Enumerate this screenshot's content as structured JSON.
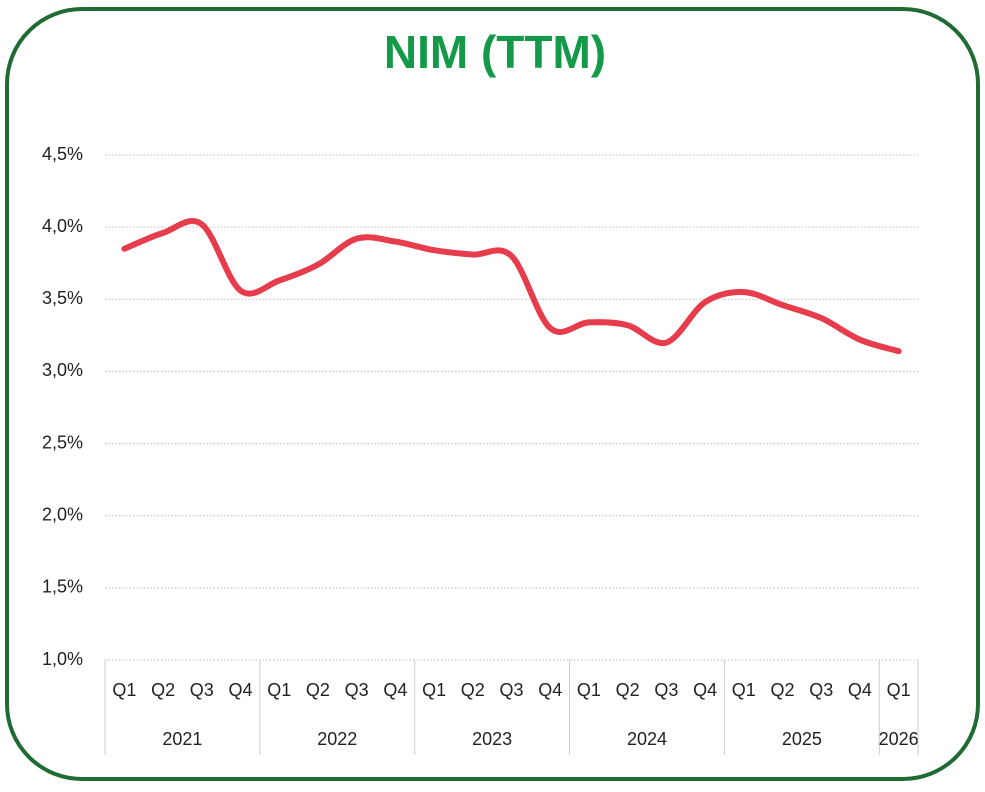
{
  "chart_data": {
    "type": "line",
    "title": "NIM (TTM)",
    "categories": [
      "Q1",
      "Q2",
      "Q3",
      "Q4",
      "Q1",
      "Q2",
      "Q3",
      "Q4",
      "Q1",
      "Q2",
      "Q3",
      "Q4",
      "Q1",
      "Q2",
      "Q3",
      "Q4",
      "Q1",
      "Q2",
      "Q3",
      "Q4",
      "Q1"
    ],
    "years": [
      "2021",
      "2022",
      "2023",
      "2024",
      "2025",
      "2026"
    ],
    "series": [
      {
        "color": "#e63c4b",
        "values": [
          3.85,
          3.96,
          4.02,
          3.56,
          3.63,
          3.74,
          3.92,
          3.9,
          3.84,
          3.81,
          3.8,
          3.3,
          3.34,
          3.32,
          3.2,
          3.48,
          3.55,
          3.46,
          3.37,
          3.22,
          3.14
        ]
      }
    ],
    "ylim": [
      1.0,
      4.5
    ],
    "yticks": [
      {
        "value": 1.0,
        "label": "1,0%"
      },
      {
        "value": 1.5,
        "label": "1,5%"
      },
      {
        "value": 2.0,
        "label": "2,0%"
      },
      {
        "value": 2.5,
        "label": "2,5%"
      },
      {
        "value": 3.0,
        "label": "3,0%"
      },
      {
        "value": 3.5,
        "label": "3,5%"
      },
      {
        "value": 4.0,
        "label": "4,0%"
      },
      {
        "value": 4.5,
        "label": "4,5%"
      }
    ],
    "grid": true
  }
}
